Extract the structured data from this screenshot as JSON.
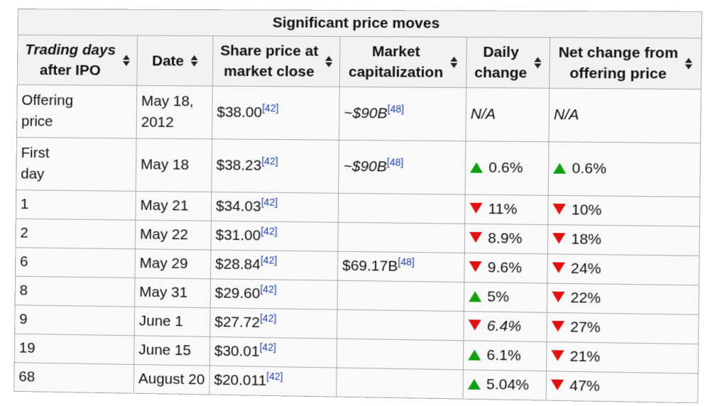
{
  "caption": "Significant price moves",
  "headers": [
    {
      "label_lines": [
        "Trading days",
        "after IPO"
      ],
      "italic_first": true
    },
    {
      "label_lines": [
        "Date"
      ],
      "italic_first": false
    },
    {
      "label_lines": [
        "Share price at",
        "market close"
      ],
      "italic_first": false
    },
    {
      "label_lines": [
        "Market",
        "capitalization"
      ],
      "italic_first": false
    },
    {
      "label_lines": [
        "Daily",
        "change"
      ],
      "italic_first": false
    },
    {
      "label_lines": [
        "Net change from",
        "offering price"
      ],
      "italic_first": false
    }
  ],
  "colors": {
    "up": "#12a012",
    "down": "#e01010",
    "ref": "#1a3fa8"
  },
  "rows": [
    {
      "days": [
        "Offering",
        "price"
      ],
      "date": [
        "May 18,",
        "2012"
      ],
      "price": "$38.00",
      "price_ref": "[42]",
      "cap": "~$90B",
      "cap_ref": "[48]",
      "daily_dir": "",
      "daily": "N/A",
      "net_dir": "",
      "net": "N/A"
    },
    {
      "days": [
        "First",
        "day"
      ],
      "date": [
        "May 18"
      ],
      "price": "$38.23",
      "price_ref": "[42]",
      "cap": "~$90B",
      "cap_ref": "[48]",
      "daily_dir": "up",
      "daily": "0.6%",
      "net_dir": "up",
      "net": "0.6%"
    },
    {
      "days": [
        "1"
      ],
      "date": [
        "May 21"
      ],
      "price": "$34.03",
      "price_ref": "[42]",
      "cap": "",
      "cap_ref": "",
      "daily_dir": "down",
      "daily": "11%",
      "net_dir": "down",
      "net": "10%"
    },
    {
      "days": [
        "2"
      ],
      "date": [
        "May 22"
      ],
      "price": "$31.00",
      "price_ref": "[42]",
      "cap": "",
      "cap_ref": "",
      "daily_dir": "down",
      "daily": "8.9%",
      "net_dir": "down",
      "net": "18%"
    },
    {
      "days": [
        "6"
      ],
      "date": [
        "May 29"
      ],
      "price": "$28.84",
      "price_ref": "[42]",
      "cap": "$69.17B",
      "cap_ref": "[48]",
      "daily_dir": "down",
      "daily": "9.6%",
      "net_dir": "down",
      "net": "24%"
    },
    {
      "days": [
        "8"
      ],
      "date": [
        "May 31"
      ],
      "price": "$29.60",
      "price_ref": "[42]",
      "cap": "",
      "cap_ref": "",
      "daily_dir": "up",
      "daily": "5%",
      "net_dir": "down",
      "net": "22%"
    },
    {
      "days": [
        "9"
      ],
      "date": [
        "June 1"
      ],
      "price": "$27.72",
      "price_ref": "[42]",
      "cap": "",
      "cap_ref": "",
      "daily_dir": "down",
      "daily": "6.4%",
      "net_dir": "down",
      "net": "27%"
    },
    {
      "days": [
        "19"
      ],
      "date": [
        "June 15"
      ],
      "price": "$30.01",
      "price_ref": "[42]",
      "cap": "",
      "cap_ref": "",
      "daily_dir": "up",
      "daily": "6.1%",
      "net_dir": "down",
      "net": "21%"
    },
    {
      "days": [
        "68"
      ],
      "date": [
        "August 20"
      ],
      "price": "$20.011",
      "price_ref": "[42]",
      "cap": "",
      "cap_ref": "",
      "daily_dir": "up",
      "daily": "5.04%",
      "net_dir": "down",
      "net": "47%"
    }
  ]
}
